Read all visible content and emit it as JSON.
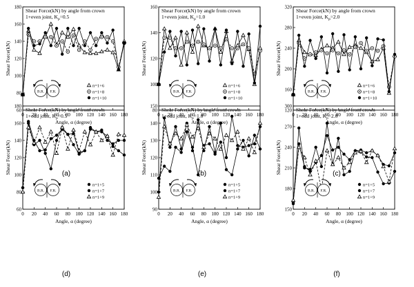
{
  "chart_data": [
    {
      "type": "line",
      "panel_label": "(a)",
      "title": "Shear Force(kN) by angle from crown",
      "subtitle": "1+even joint, K",
      "subscript": "p",
      "subtitle_suffix": "=0.5",
      "xlabel": "Angle, α (degree)",
      "ylabel": "Shear Force(kN)",
      "xlim": [
        0,
        180
      ],
      "ylim": [
        60,
        180
      ],
      "xticks": [
        0,
        20,
        40,
        60,
        80,
        100,
        120,
        140,
        160,
        180
      ],
      "yticks": [
        60,
        80,
        100,
        120,
        140,
        160,
        180
      ],
      "legend_position": "bottom-right",
      "diagram_labels": [
        "B.R.",
        "F.R."
      ],
      "series": [
        {
          "name": "n=1+6",
          "marker": "triangle",
          "dash": "solid",
          "x": [
            0,
            10,
            20,
            30,
            40,
            50,
            60,
            70,
            80,
            90,
            100,
            110,
            120,
            130,
            140,
            150,
            160,
            170,
            180
          ],
          "y": [
            78,
            152,
            130,
            126,
            145,
            160,
            136,
            150,
            145,
            154,
            135,
            127,
            126,
            126,
            128,
            130,
            127,
            107,
            140
          ]
        },
        {
          "name": "n=1+8",
          "marker": "circle-dot",
          "dash": "dashed",
          "x": [
            0,
            10,
            20,
            30,
            40,
            50,
            60,
            70,
            80,
            90,
            100,
            110,
            120,
            130,
            140,
            150,
            160,
            170,
            180
          ],
          "y": [
            78,
            148,
            140,
            140,
            145,
            145,
            135,
            140,
            128,
            147,
            130,
            140,
            130,
            143,
            145,
            145,
            140,
            110,
            138
          ]
        },
        {
          "name": "n=1+10",
          "marker": "circle",
          "dash": "solid",
          "x": [
            0,
            10,
            20,
            30,
            40,
            50,
            60,
            70,
            80,
            90,
            100,
            110,
            120,
            130,
            140,
            150,
            160,
            170,
            180
          ],
          "y": [
            78,
            155,
            135,
            137,
            150,
            135,
            155,
            125,
            155,
            135,
            155,
            135,
            150,
            135,
            150,
            138,
            153,
            107,
            138
          ]
        }
      ]
    },
    {
      "type": "line",
      "panel_label": "(b)",
      "title": "Shear Force(kN) by angle from crown",
      "subtitle": "1+even joint, K",
      "subscript": "p",
      "subtitle_suffix": "=1.0",
      "xlabel": "Angle, α (degree)",
      "ylabel": "Shear Force(kN)",
      "xlim": [
        0,
        180
      ],
      "ylim": [
        80,
        160
      ],
      "xticks": [
        0,
        20,
        40,
        60,
        80,
        100,
        120,
        140,
        160,
        180
      ],
      "yticks": [
        80,
        100,
        120,
        140,
        160
      ],
      "legend_position": "bottom-right",
      "diagram_labels": [
        "B.R.",
        "F.R."
      ],
      "series": [
        {
          "name": "n=1+6",
          "marker": "triangle",
          "dash": "solid",
          "x": [
            0,
            10,
            20,
            30,
            40,
            50,
            60,
            70,
            80,
            90,
            100,
            110,
            120,
            130,
            140,
            150,
            160,
            170,
            180
          ],
          "y": [
            100,
            143,
            128,
            136,
            115,
            140,
            125,
            145,
            130,
            128,
            143,
            125,
            141,
            118,
            130,
            138,
            127,
            100,
            128
          ]
        },
        {
          "name": "n=1+8",
          "marker": "circle-dot",
          "dash": "dashed",
          "x": [
            0,
            10,
            20,
            30,
            40,
            50,
            60,
            70,
            80,
            90,
            100,
            110,
            120,
            130,
            140,
            150,
            160,
            170,
            180
          ],
          "y": [
            100,
            136,
            136,
            128,
            128,
            133,
            130,
            133,
            131,
            128,
            130,
            128,
            135,
            128,
            128,
            131,
            128,
            108,
            126
          ]
        },
        {
          "name": "n=1+10",
          "marker": "circle",
          "dash": "solid",
          "x": [
            0,
            10,
            20,
            30,
            40,
            50,
            60,
            70,
            80,
            90,
            100,
            110,
            120,
            130,
            140,
            150,
            160,
            170,
            180
          ],
          "y": [
            100,
            125,
            141,
            122,
            141,
            115,
            142,
            116,
            143,
            118,
            143,
            115,
            142,
            116,
            141,
            114,
            139,
            101,
            145
          ]
        }
      ]
    },
    {
      "type": "line",
      "panel_label": "(c)",
      "title": "Shear Force(kN) by angle from crown",
      "subtitle": "1+even joint, K",
      "subscript": "p",
      "subtitle_suffix": "=2.0",
      "xlabel": "Angle, α (degree)",
      "ylabel": "Shear Force(kN)",
      "xlim": [
        0,
        180
      ],
      "ylim": [
        120,
        320
      ],
      "xticks": [
        0,
        20,
        40,
        60,
        80,
        100,
        120,
        140,
        160,
        180
      ],
      "yticks": [
        120,
        160,
        200,
        240,
        280,
        320
      ],
      "legend_position": "bottom-right",
      "diagram_labels": [
        "B.R.",
        "F.R."
      ],
      "series": [
        {
          "name": "n=1+6",
          "marker": "triangle",
          "dash": "solid",
          "x": [
            0,
            10,
            20,
            30,
            40,
            50,
            60,
            70,
            80,
            90,
            100,
            110,
            120,
            130,
            140,
            150,
            160,
            170,
            180
          ],
          "y": [
            150,
            255,
            232,
            228,
            226,
            238,
            245,
            240,
            252,
            228,
            242,
            245,
            240,
            232,
            214,
            218,
            240,
            153,
            226
          ]
        },
        {
          "name": "n=1+8",
          "marker": "circle-dot",
          "dash": "dashed",
          "x": [
            0,
            10,
            20,
            30,
            40,
            50,
            60,
            70,
            80,
            90,
            100,
            110,
            120,
            130,
            140,
            150,
            160,
            170,
            180
          ],
          "y": [
            150,
            250,
            220,
            228,
            232,
            236,
            230,
            236,
            230,
            236,
            228,
            242,
            250,
            235,
            240,
            235,
            244,
            165,
            224
          ]
        },
        {
          "name": "n=1+10",
          "marker": "circle",
          "dash": "solid",
          "x": [
            0,
            10,
            20,
            30,
            40,
            50,
            60,
            70,
            80,
            90,
            100,
            110,
            120,
            130,
            140,
            150,
            160,
            170,
            180
          ],
          "y": [
            150,
            265,
            205,
            255,
            220,
            262,
            192,
            268,
            195,
            266,
            198,
            262,
            200,
            260,
            206,
            258,
            256,
            156,
            228
          ]
        }
      ]
    },
    {
      "type": "line",
      "panel_label": "(d)",
      "title": "Shear Force(kN) by angle from crown",
      "subtitle": "1+odd joint, K",
      "subscript": "p",
      "subtitle_suffix": "=0.5",
      "xlabel": "Angle, α (degree)",
      "ylabel": "Shear Force(kN)",
      "xlim": [
        0,
        180
      ],
      "ylim": [
        60,
        180
      ],
      "xticks": [
        0,
        20,
        40,
        60,
        80,
        100,
        120,
        140,
        160,
        180
      ],
      "yticks": [
        60,
        80,
        100,
        120,
        140,
        160,
        180
      ],
      "legend_position": "bottom-right",
      "diagram_labels": [
        "B.R.",
        "F.R."
      ],
      "series": [
        {
          "name": "n=1+5",
          "marker": "circle",
          "dash": "solid",
          "x": [
            0,
            10,
            20,
            30,
            40,
            50,
            60,
            70,
            80,
            90,
            100,
            110,
            120,
            130,
            140,
            150,
            160,
            170,
            180
          ],
          "y": [
            85,
            162,
            140,
            128,
            129,
            142,
            146,
            153,
            147,
            135,
            124,
            128,
            153,
            150,
            150,
            145,
            133,
            128,
            123
          ]
        },
        {
          "name": "n=1+7",
          "marker": "circle",
          "dash": "solid",
          "x": [
            0,
            10,
            20,
            30,
            40,
            50,
            60,
            70,
            80,
            90,
            100,
            110,
            120,
            130,
            140,
            150,
            160,
            170,
            180
          ],
          "y": [
            85,
            160,
            135,
            140,
            125,
            107,
            140,
            155,
            147,
            148,
            126,
            128,
            155,
            150,
            152,
            140,
            136,
            140,
            140
          ]
        },
        {
          "name": "n=1+9",
          "marker": "triangle",
          "dash": "dashed",
          "x": [
            0,
            10,
            20,
            30,
            40,
            50,
            60,
            70,
            80,
            90,
            100,
            110,
            120,
            130,
            140,
            150,
            160,
            170,
            180
          ],
          "y": [
            80,
            155,
            137,
            155,
            138,
            150,
            125,
            155,
            130,
            152,
            128,
            150,
            135,
            150,
            140,
            145,
            123,
            147,
            146
          ]
        }
      ]
    },
    {
      "type": "line",
      "panel_label": "(e)",
      "title": "Shear Force(kN) by angle from crown",
      "subtitle": "1+odd joint, K",
      "subscript": "p",
      "subtitle_suffix": "=1.0",
      "xlabel": "Angle, α (degree)",
      "ylabel": "Shear Force(kN)",
      "xlim": [
        0,
        180
      ],
      "ylim": [
        90,
        150
      ],
      "xticks": [
        0,
        20,
        40,
        60,
        80,
        100,
        120,
        140,
        160,
        180
      ],
      "yticks": [
        90,
        100,
        110,
        120,
        130,
        140,
        150
      ],
      "legend_position": "bottom-right",
      "diagram_labels": [
        "B.R.",
        "F.R."
      ],
      "series": [
        {
          "name": "n=1+5",
          "marker": "circle",
          "dash": "solid",
          "x": [
            0,
            10,
            20,
            30,
            40,
            50,
            60,
            70,
            80,
            90,
            100,
            110,
            120,
            130,
            140,
            150,
            160,
            170,
            180
          ],
          "y": [
            108,
            115,
            112,
            126,
            123,
            135,
            126,
            110,
            127,
            128,
            122,
            129,
            113,
            110,
            125,
            130,
            121,
            133,
            125
          ]
        },
        {
          "name": "n=1+7",
          "marker": "circle",
          "dash": "solid",
          "x": [
            0,
            10,
            20,
            30,
            40,
            50,
            60,
            70,
            80,
            90,
            100,
            110,
            120,
            130,
            140,
            150,
            160,
            170,
            180
          ],
          "y": [
            100,
            143,
            126,
            138,
            125,
            140,
            124,
            142,
            124,
            138,
            123,
            140,
            120,
            144,
            127,
            126,
            127,
            128,
            138
          ]
        },
        {
          "name": "n=1+9",
          "marker": "triangle",
          "dash": "dashed",
          "x": [
            0,
            10,
            20,
            30,
            40,
            50,
            60,
            70,
            80,
            90,
            100,
            110,
            120,
            130,
            140,
            150,
            160,
            170,
            180
          ],
          "y": [
            97,
            138,
            128,
            134,
            131,
            139,
            132,
            137,
            126,
            134,
            131,
            125,
            133,
            130,
            135,
            125,
            131,
            123,
            140
          ]
        }
      ]
    },
    {
      "type": "line",
      "panel_label": "(f)",
      "title": "Shear Force(kN) by angle from crown",
      "subtitle": "1+odd joint, K",
      "subscript": "p",
      "subtitle_suffix": "=2.0",
      "xlabel": "Angle, α (degree)",
      "ylabel": "Shear Force(kN)",
      "xlim": [
        0,
        180
      ],
      "ylim": [
        150,
        300
      ],
      "xticks": [
        0,
        20,
        40,
        60,
        80,
        100,
        120,
        140,
        160,
        180
      ],
      "yticks": [
        150,
        180,
        210,
        240,
        270,
        300
      ],
      "legend_position": "bottom-right",
      "diagram_labels": [
        "B.R.",
        "F.R."
      ],
      "series": [
        {
          "name": "n=1+5",
          "marker": "circle",
          "dash": "solid",
          "x": [
            0,
            10,
            20,
            30,
            40,
            50,
            60,
            70,
            80,
            90,
            100,
            110,
            120,
            130,
            140,
            150,
            160,
            170,
            180
          ],
          "y": [
            160,
            245,
            212,
            205,
            218,
            228,
            257,
            236,
            240,
            230,
            222,
            235,
            233,
            226,
            225,
            204,
            187,
            188,
            205
          ]
        },
        {
          "name": "n=1+7",
          "marker": "circle",
          "dash": "solid",
          "x": [
            0,
            10,
            20,
            30,
            40,
            50,
            60,
            70,
            80,
            90,
            100,
            110,
            120,
            130,
            140,
            150,
            160,
            170,
            180
          ],
          "y": [
            158,
            268,
            210,
            208,
            240,
            212,
            275,
            215,
            253,
            200,
            205,
            235,
            236,
            232,
            235,
            228,
            215,
            213,
            232
          ]
        },
        {
          "name": "n=1+9",
          "marker": "triangle",
          "dash": "dashed",
          "x": [
            0,
            10,
            20,
            30,
            40,
            50,
            60,
            70,
            80,
            90,
            100,
            110,
            120,
            130,
            140,
            150,
            160,
            170,
            180
          ],
          "y": [
            163,
            240,
            225,
            200,
            220,
            178,
            235,
            215,
            225,
            210,
            218,
            232,
            234,
            218,
            235,
            228,
            212,
            190,
            238
          ]
        }
      ]
    }
  ]
}
